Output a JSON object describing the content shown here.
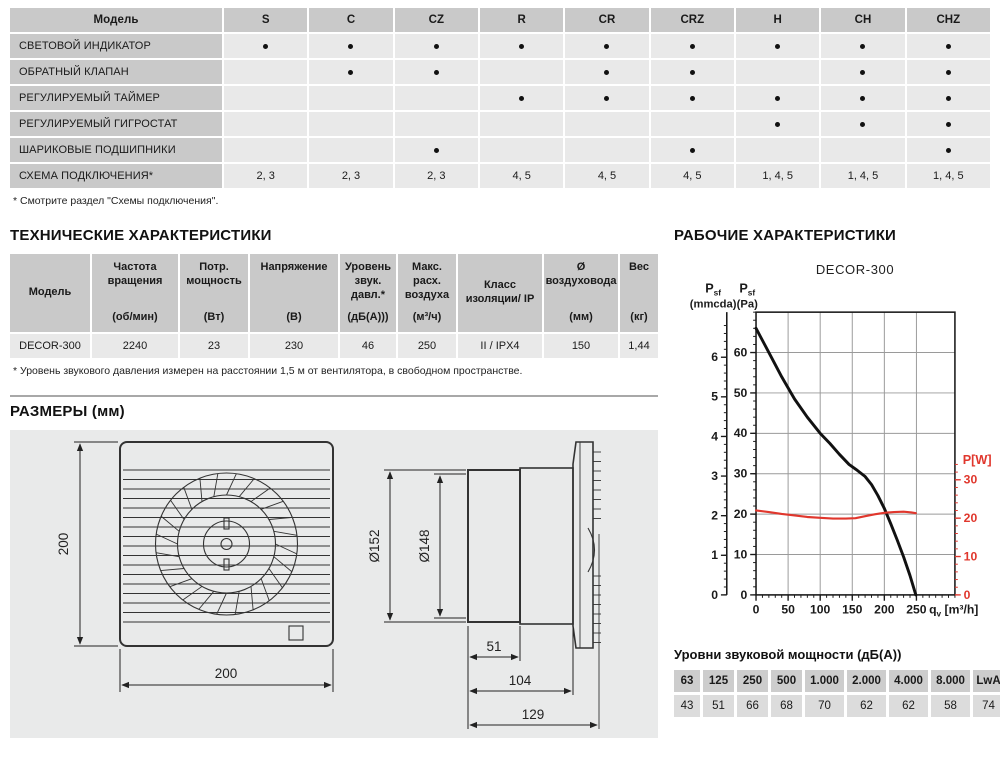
{
  "features_table": {
    "model_header": "Модель",
    "columns": [
      "S",
      "C",
      "CZ",
      "R",
      "CR",
      "CRZ",
      "H",
      "CH",
      "CHZ"
    ],
    "rows": [
      {
        "label": "СВЕТОВОЙ ИНДИКАТОР",
        "cells": [
          "•",
          "•",
          "•",
          "•",
          "•",
          "•",
          "•",
          "•",
          "•"
        ]
      },
      {
        "label": "ОБРАТНЫЙ КЛАПАН",
        "cells": [
          "",
          "•",
          "•",
          "",
          "•",
          "•",
          "",
          "•",
          "•"
        ]
      },
      {
        "label": "РЕГУЛИРУЕМЫЙ ТАЙМЕР",
        "cells": [
          "",
          "",
          "",
          "•",
          "•",
          "•",
          "•",
          "•",
          "•"
        ]
      },
      {
        "label": "РЕГУЛИРУЕМЫЙ ГИГРОСТАТ",
        "cells": [
          "",
          "",
          "",
          "",
          "",
          "",
          "•",
          "•",
          "•"
        ]
      },
      {
        "label": "ШАРИКОВЫЕ ПОДШИПНИКИ",
        "cells": [
          "",
          "",
          "•",
          "",
          "",
          "•",
          "",
          "",
          "•"
        ]
      },
      {
        "label": "СХЕМА ПОДКЛЮЧЕНИЯ*",
        "cells": [
          "2, 3",
          "2, 3",
          "2, 3",
          "4, 5",
          "4, 5",
          "4, 5",
          "1, 4, 5",
          "1, 4, 5",
          "1, 4, 5"
        ]
      }
    ],
    "footnote": "* Смотрите раздел \"Схемы подключения\"."
  },
  "tech_section": {
    "title": "ТЕХНИЧЕСКИЕ ХАРАКТЕРИСТИКИ",
    "columns": [
      {
        "name": "Модель",
        "unit": ""
      },
      {
        "name": "Частота вращения",
        "unit": "(об/мин)"
      },
      {
        "name": "Потр. мощность",
        "unit": "(Вт)"
      },
      {
        "name": "Напряжение",
        "unit": "(В)"
      },
      {
        "name": "Уровень звук. давл.*",
        "unit": "(дБ(А)))"
      },
      {
        "name": "Макс. расх. воздуха",
        "unit": "(м³/ч)"
      },
      {
        "name": "Класс изоляции/ IP",
        "unit": ""
      },
      {
        "name": "Ø воздуховода",
        "unit": "(мм)"
      },
      {
        "name": "Вес",
        "unit": "(кг)"
      }
    ],
    "row": [
      "DECOR-300",
      "2240",
      "23",
      "230",
      "46",
      "250",
      "II / IPX4",
      "150",
      "1,44"
    ],
    "footnote": "* Уровень звукового давления измерен на расстоянии 1,5 м от вентилятора, в свободном пространстве."
  },
  "dimensions_section": {
    "title": "РАЗМЕРЫ (мм)",
    "front_view": {
      "height": "200",
      "width": "200"
    },
    "side_view": {
      "outer_diameter": "Ø152",
      "inner_diameter": "Ø148",
      "duct_length": "51",
      "body_depth": "104",
      "total_depth": "129"
    }
  },
  "performance_section": {
    "title": "РАБОЧИЕ ХАРАКТЕРИСТИКИ",
    "chart_title": "DECOR-300"
  },
  "chart_data": {
    "type": "line",
    "title": "DECOR-300",
    "x_axis": {
      "label_main": "q",
      "label_sub": "v",
      "label_unit": "[m³/h]",
      "min": 0,
      "max": 310,
      "major_ticks": [
        0,
        50,
        100,
        150,
        200,
        250
      ],
      "minor_step": 10
    },
    "y_axis_pa": {
      "label_main": "P",
      "label_sub": "sf",
      "label_unit": "(Pa)",
      "min": 0,
      "max": 70,
      "major_ticks": [
        0,
        10,
        20,
        30,
        40,
        50,
        60
      ],
      "minor_step": 2
    },
    "y_axis_mmcda": {
      "label_main": "P",
      "label_sub": "sf",
      "label_unit": "(mmcda)",
      "min": 0,
      "max": 6.8,
      "major_ticks": [
        0,
        1,
        2,
        3,
        4,
        5,
        6
      ],
      "minor_step": 0.2,
      "pa_per_unit": 9.80665
    },
    "y_axis_w": {
      "label": "P[W]",
      "min": 0,
      "max": 34,
      "major_ticks": [
        0,
        10,
        20,
        30
      ],
      "minor_step": 2,
      "pa_per_unit": 0.95,
      "color": "#e0372d"
    },
    "grid": true,
    "series": [
      {
        "name": "pressure_curve",
        "axis": "pa",
        "color": "#111111",
        "stroke_width": 3,
        "points": [
          [
            0,
            66
          ],
          [
            20,
            60
          ],
          [
            40,
            54
          ],
          [
            60,
            48.5
          ],
          [
            80,
            44
          ],
          [
            100,
            40
          ],
          [
            115,
            37.5
          ],
          [
            130,
            34.8
          ],
          [
            145,
            32.3
          ],
          [
            158,
            30.8
          ],
          [
            170,
            29.3
          ],
          [
            180,
            27.3
          ],
          [
            190,
            24.6
          ],
          [
            200,
            21.4
          ],
          [
            210,
            17.6
          ],
          [
            220,
            13.6
          ],
          [
            230,
            9.4
          ],
          [
            240,
            4.8
          ],
          [
            249,
            0
          ]
        ]
      },
      {
        "name": "power_curve",
        "axis": "w",
        "color": "#e0372d",
        "stroke_width": 2.2,
        "points": [
          [
            0,
            22
          ],
          [
            20,
            21.6
          ],
          [
            40,
            21.1
          ],
          [
            60,
            20.7
          ],
          [
            80,
            20.3
          ],
          [
            100,
            20.1
          ],
          [
            120,
            19.9
          ],
          [
            140,
            19.9
          ],
          [
            155,
            20
          ],
          [
            170,
            20.5
          ],
          [
            185,
            21
          ],
          [
            200,
            21.4
          ],
          [
            215,
            21.6
          ],
          [
            230,
            21.7
          ],
          [
            242,
            21.5
          ],
          [
            249,
            21.3
          ]
        ]
      }
    ]
  },
  "sound_table": {
    "title": "Уровни звуковой мощности (дБ(А))",
    "frequencies": [
      "63",
      "125",
      "250",
      "500",
      "1.000",
      "2.000",
      "4.000",
      "8.000",
      "LwA"
    ],
    "values": [
      "43",
      "51",
      "66",
      "68",
      "70",
      "62",
      "62",
      "58",
      "74"
    ]
  },
  "colors": {
    "header_cell": "#c9c9c9",
    "data_cell": "#e9e9e9",
    "sound_header_cell": "#cdcdcd",
    "sound_value_cell": "#dcdcdc",
    "panel_bg": "#e9eaea",
    "accent_red": "#e0372d",
    "line_black": "#111111"
  }
}
